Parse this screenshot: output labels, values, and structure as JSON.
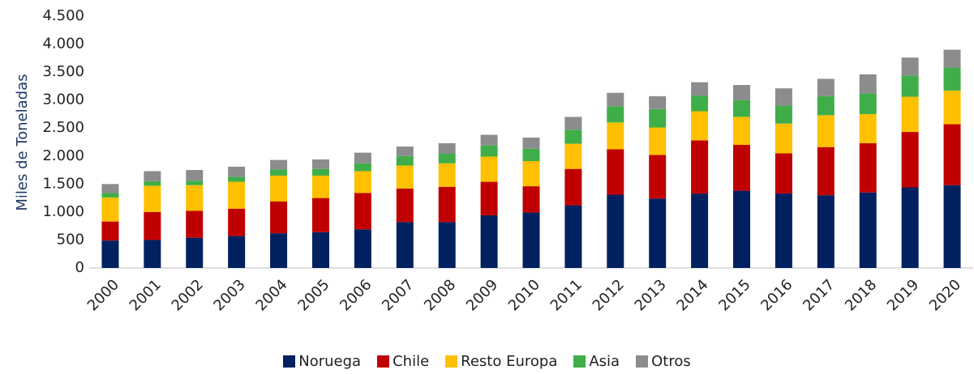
{
  "chart_data": {
    "type": "stacked_bar",
    "y_label": "Miles de Toneladas",
    "categories": [
      "2000",
      "2001",
      "2002",
      "2003",
      "2004",
      "2005",
      "2006",
      "2007",
      "2008",
      "2009",
      "2010",
      "2011",
      "2012",
      "2013",
      "2014",
      "2015",
      "2016",
      "2017",
      "2018",
      "2019",
      "2020"
    ],
    "series": [
      {
        "name": "Noruega",
        "color": "#002060",
        "values": [
          490,
          500,
          540,
          570,
          620,
          640,
          690,
          820,
          820,
          940,
          990,
          1120,
          1310,
          1240,
          1330,
          1380,
          1330,
          1300,
          1350,
          1440,
          1480
        ]
      },
      {
        "name": "Chile",
        "color": "#c00000",
        "values": [
          340,
          500,
          480,
          490,
          570,
          610,
          650,
          600,
          630,
          600,
          470,
          650,
          810,
          780,
          950,
          820,
          720,
          860,
          880,
          990,
          1090
        ]
      },
      {
        "name": "Resto Europa",
        "color": "#ffc000",
        "values": [
          430,
          470,
          460,
          480,
          460,
          400,
          390,
          410,
          420,
          450,
          450,
          450,
          480,
          490,
          520,
          500,
          530,
          570,
          520,
          630,
          600
        ]
      },
      {
        "name": "Asia",
        "color": "#3fae49",
        "values": [
          80,
          80,
          80,
          90,
          110,
          120,
          140,
          170,
          170,
          200,
          220,
          250,
          290,
          330,
          280,
          300,
          320,
          340,
          370,
          380,
          410
        ]
      },
      {
        "name": "Otros",
        "color": "#8c8c8c",
        "values": [
          160,
          180,
          190,
          180,
          170,
          170,
          190,
          170,
          190,
          190,
          200,
          230,
          240,
          230,
          240,
          270,
          310,
          310,
          340,
          320,
          320
        ]
      }
    ],
    "ylim": [
      0,
      4500
    ],
    "yticks": [
      0,
      500,
      {
        "value": 1000,
        "label": "1.000"
      },
      {
        "value": 1500,
        "label": "1.500"
      },
      {
        "value": 2000,
        "label": "2.000"
      },
      {
        "value": 2500,
        "label": "2.500"
      },
      {
        "value": 3000,
        "label": "3.000"
      },
      {
        "value": 3500,
        "label": "3.500"
      },
      {
        "value": 4000,
        "label": "4.000"
      },
      {
        "value": 4500,
        "label": "4.500"
      }
    ],
    "grid": false,
    "legend": "bottom"
  }
}
